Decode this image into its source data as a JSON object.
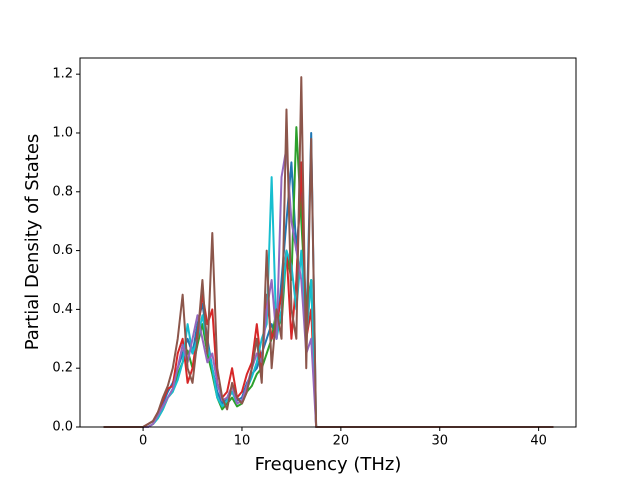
{
  "chart_data": {
    "type": "line",
    "x_label": "Frequency (THz)",
    "y_label": "Partial Density of States",
    "x": [
      -4,
      0,
      0.5,
      1,
      1.5,
      2,
      2.5,
      3,
      3.5,
      4,
      4.5,
      5,
      5.5,
      6,
      6.5,
      7,
      7.5,
      8,
      8.5,
      9,
      9.5,
      10,
      10.5,
      11,
      11.5,
      12,
      12.5,
      13,
      13.5,
      14,
      14.5,
      15,
      15.5,
      16,
      16.5,
      17,
      17.5,
      41.5
    ],
    "series": [
      {
        "color": "#1f77b4",
        "values": [
          0,
          0,
          0.01,
          0.02,
          0.04,
          0.08,
          0.12,
          0.15,
          0.2,
          0.25,
          0.3,
          0.25,
          0.35,
          0.42,
          0.3,
          0.2,
          0.12,
          0.08,
          0.1,
          0.12,
          0.09,
          0.1,
          0.15,
          0.18,
          0.2,
          0.25,
          0.3,
          0.35,
          0.3,
          0.5,
          0.7,
          0.9,
          0.6,
          0.8,
          0.3,
          1.0,
          0,
          0
        ]
      },
      {
        "color": "#2ca02c",
        "values": [
          0,
          0,
          0,
          0.01,
          0.03,
          0.06,
          0.1,
          0.12,
          0.18,
          0.22,
          0.26,
          0.2,
          0.28,
          0.35,
          0.25,
          0.18,
          0.1,
          0.06,
          0.08,
          0.1,
          0.07,
          0.08,
          0.12,
          0.14,
          0.18,
          0.2,
          0.25,
          0.3,
          0.4,
          0.35,
          0.6,
          0.5,
          1.02,
          0.7,
          0.4,
          0.5,
          0,
          0
        ]
      },
      {
        "color": "#d62728",
        "values": [
          0,
          0,
          0.01,
          0.02,
          0.05,
          0.09,
          0.13,
          0.14,
          0.25,
          0.3,
          0.15,
          0.2,
          0.32,
          0.45,
          0.35,
          0.4,
          0.15,
          0.1,
          0.12,
          0.2,
          0.1,
          0.12,
          0.18,
          0.22,
          0.35,
          0.2,
          0.45,
          0.3,
          0.35,
          0.45,
          0.6,
          0.3,
          0.5,
          0.9,
          0.3,
          0.4,
          0,
          0
        ]
      },
      {
        "color": "#17becf",
        "values": [
          0,
          0,
          0,
          0.01,
          0.03,
          0.06,
          0.1,
          0.12,
          0.16,
          0.22,
          0.35,
          0.25,
          0.3,
          0.38,
          0.28,
          0.2,
          0.1,
          0.07,
          0.09,
          0.12,
          0.08,
          0.09,
          0.13,
          0.17,
          0.22,
          0.3,
          0.35,
          0.85,
          0.3,
          0.4,
          0.6,
          0.55,
          0.4,
          0.6,
          0.3,
          0.5,
          0,
          0
        ]
      },
      {
        "color": "#9467bd",
        "values": [
          0,
          0,
          0,
          0.01,
          0.04,
          0.07,
          0.1,
          0.13,
          0.2,
          0.28,
          0.22,
          0.3,
          0.38,
          0.3,
          0.22,
          0.25,
          0.15,
          0.09,
          0.1,
          0.14,
          0.08,
          0.09,
          0.14,
          0.2,
          0.25,
          0.22,
          0.4,
          0.5,
          0.3,
          0.85,
          0.95,
          0.7,
          0.6,
          0.5,
          0.25,
          0.3,
          0,
          0
        ]
      },
      {
        "color": "#8c564b",
        "values": [
          0,
          0,
          0.01,
          0.02,
          0.05,
          0.1,
          0.14,
          0.2,
          0.3,
          0.45,
          0.2,
          0.15,
          0.3,
          0.5,
          0.25,
          0.66,
          0.2,
          0.1,
          0.06,
          0.15,
          0.1,
          0.08,
          0.12,
          0.2,
          0.3,
          0.15,
          0.6,
          0.2,
          0.4,
          0.3,
          1.08,
          0.4,
          0.3,
          1.19,
          0.2,
          0.98,
          0,
          0
        ]
      }
    ],
    "xlim": [
      -6.38,
      43.78
    ],
    "xticks": [
      0,
      10,
      20,
      30,
      40
    ],
    "ylim": [
      0,
      1.255
    ],
    "yticks": [
      {
        "value": 0,
        "label": "0.0"
      },
      0.2,
      0.4,
      0.6,
      0.8,
      {
        "value": 1,
        "label": "1.0"
      },
      1.2
    ],
    "grid": false
  }
}
